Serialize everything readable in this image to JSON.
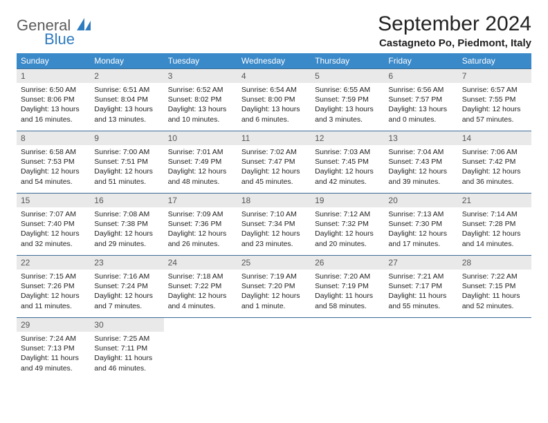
{
  "brand": {
    "general": "General",
    "blue": "Blue"
  },
  "title": "September 2024",
  "location": "Castagneto Po, Piedmont, Italy",
  "colors": {
    "header_bg": "#3a89c9",
    "header_text": "#ffffff",
    "row_border": "#3a6b94",
    "daynum_bg": "#e9e9e9",
    "daynum_text": "#555555",
    "body_text": "#222222",
    "logo_gray": "#5b5b5b",
    "logo_blue": "#2f7bbf"
  },
  "weekdays": [
    "Sunday",
    "Monday",
    "Tuesday",
    "Wednesday",
    "Thursday",
    "Friday",
    "Saturday"
  ],
  "weeks": [
    [
      {
        "n": "1",
        "sr": "6:50 AM",
        "ss": "8:06 PM",
        "dl": "13 hours and 16 minutes."
      },
      {
        "n": "2",
        "sr": "6:51 AM",
        "ss": "8:04 PM",
        "dl": "13 hours and 13 minutes."
      },
      {
        "n": "3",
        "sr": "6:52 AM",
        "ss": "8:02 PM",
        "dl": "13 hours and 10 minutes."
      },
      {
        "n": "4",
        "sr": "6:54 AM",
        "ss": "8:00 PM",
        "dl": "13 hours and 6 minutes."
      },
      {
        "n": "5",
        "sr": "6:55 AM",
        "ss": "7:59 PM",
        "dl": "13 hours and 3 minutes."
      },
      {
        "n": "6",
        "sr": "6:56 AM",
        "ss": "7:57 PM",
        "dl": "13 hours and 0 minutes."
      },
      {
        "n": "7",
        "sr": "6:57 AM",
        "ss": "7:55 PM",
        "dl": "12 hours and 57 minutes."
      }
    ],
    [
      {
        "n": "8",
        "sr": "6:58 AM",
        "ss": "7:53 PM",
        "dl": "12 hours and 54 minutes."
      },
      {
        "n": "9",
        "sr": "7:00 AM",
        "ss": "7:51 PM",
        "dl": "12 hours and 51 minutes."
      },
      {
        "n": "10",
        "sr": "7:01 AM",
        "ss": "7:49 PM",
        "dl": "12 hours and 48 minutes."
      },
      {
        "n": "11",
        "sr": "7:02 AM",
        "ss": "7:47 PM",
        "dl": "12 hours and 45 minutes."
      },
      {
        "n": "12",
        "sr": "7:03 AM",
        "ss": "7:45 PM",
        "dl": "12 hours and 42 minutes."
      },
      {
        "n": "13",
        "sr": "7:04 AM",
        "ss": "7:43 PM",
        "dl": "12 hours and 39 minutes."
      },
      {
        "n": "14",
        "sr": "7:06 AM",
        "ss": "7:42 PM",
        "dl": "12 hours and 36 minutes."
      }
    ],
    [
      {
        "n": "15",
        "sr": "7:07 AM",
        "ss": "7:40 PM",
        "dl": "12 hours and 32 minutes."
      },
      {
        "n": "16",
        "sr": "7:08 AM",
        "ss": "7:38 PM",
        "dl": "12 hours and 29 minutes."
      },
      {
        "n": "17",
        "sr": "7:09 AM",
        "ss": "7:36 PM",
        "dl": "12 hours and 26 minutes."
      },
      {
        "n": "18",
        "sr": "7:10 AM",
        "ss": "7:34 PM",
        "dl": "12 hours and 23 minutes."
      },
      {
        "n": "19",
        "sr": "7:12 AM",
        "ss": "7:32 PM",
        "dl": "12 hours and 20 minutes."
      },
      {
        "n": "20",
        "sr": "7:13 AM",
        "ss": "7:30 PM",
        "dl": "12 hours and 17 minutes."
      },
      {
        "n": "21",
        "sr": "7:14 AM",
        "ss": "7:28 PM",
        "dl": "12 hours and 14 minutes."
      }
    ],
    [
      {
        "n": "22",
        "sr": "7:15 AM",
        "ss": "7:26 PM",
        "dl": "12 hours and 11 minutes."
      },
      {
        "n": "23",
        "sr": "7:16 AM",
        "ss": "7:24 PM",
        "dl": "12 hours and 7 minutes."
      },
      {
        "n": "24",
        "sr": "7:18 AM",
        "ss": "7:22 PM",
        "dl": "12 hours and 4 minutes."
      },
      {
        "n": "25",
        "sr": "7:19 AM",
        "ss": "7:20 PM",
        "dl": "12 hours and 1 minute."
      },
      {
        "n": "26",
        "sr": "7:20 AM",
        "ss": "7:19 PM",
        "dl": "11 hours and 58 minutes."
      },
      {
        "n": "27",
        "sr": "7:21 AM",
        "ss": "7:17 PM",
        "dl": "11 hours and 55 minutes."
      },
      {
        "n": "28",
        "sr": "7:22 AM",
        "ss": "7:15 PM",
        "dl": "11 hours and 52 minutes."
      }
    ],
    [
      {
        "n": "29",
        "sr": "7:24 AM",
        "ss": "7:13 PM",
        "dl": "11 hours and 49 minutes."
      },
      {
        "n": "30",
        "sr": "7:25 AM",
        "ss": "7:11 PM",
        "dl": "11 hours and 46 minutes."
      },
      null,
      null,
      null,
      null,
      null
    ]
  ],
  "labels": {
    "sunrise_prefix": "Sunrise: ",
    "sunset_prefix": "Sunset: ",
    "daylight_prefix": "Daylight: "
  }
}
